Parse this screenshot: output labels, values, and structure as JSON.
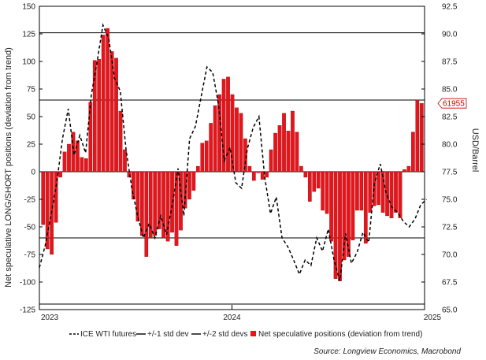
{
  "chart_data": {
    "type": "bar",
    "title": "",
    "ylabel_left": "Net speculative LONG/SHORT positions (deviation from trend)",
    "ylabel_right": "USD/Barrel",
    "source": "Source: Longview Economics, Macrobond",
    "x_ticks": [
      "2023",
      "2024",
      "2025"
    ],
    "x_range": [
      2023.0,
      2025.0
    ],
    "y_left": {
      "min": -125,
      "max": 150,
      "ticks": [
        "150",
        "125",
        "100",
        "75",
        "50",
        "25",
        "0",
        "-25",
        "-50",
        "-75",
        "-100",
        "-125"
      ]
    },
    "y_right": {
      "min": 65.0,
      "max": 92.5,
      "ticks": [
        "92.5",
        "90.0",
        "87.5",
        "85.0",
        "82.5",
        "80.0",
        "77.5",
        "75.0",
        "72.5",
        "70.0",
        "67.5",
        "65.0"
      ]
    },
    "reference_lines": {
      "std1": [
        65,
        -60
      ],
      "std2": [
        126,
        -120
      ],
      "zero": 0
    },
    "callout": {
      "label": "61955",
      "value": 62
    },
    "legend": [
      {
        "name": "ICE WTI futures",
        "style": "dashed",
        "color": "#000000"
      },
      {
        "name": "+/-1 std dev",
        "style": "solid",
        "color": "#000000"
      },
      {
        "name": "+/-2 std devs",
        "style": "solid",
        "color": "#000000"
      },
      {
        "name": "Net speculative positions (deviation from trend)",
        "style": "bar",
        "color": "#e8141b"
      }
    ],
    "colors": {
      "bars": "#e8141b",
      "bar_edge": "#7a0000",
      "line": "#000000"
    },
    "series": [
      {
        "name": "Net speculative positions (deviation from trend)",
        "type": "bar",
        "axis": "left",
        "values": [
          -48,
          -70,
          -75,
          -46,
          -5,
          18,
          25,
          36,
          28,
          13,
          12,
          63,
          101,
          102,
          124,
          130,
          109,
          103,
          55,
          20,
          -5,
          -25,
          -45,
          -58,
          -77,
          -60,
          -58,
          -52,
          -60,
          -63,
          -55,
          -67,
          -53,
          -33,
          -25,
          -17,
          5,
          26,
          28,
          44,
          60,
          70,
          84,
          86,
          70,
          58,
          53,
          30,
          5,
          -8,
          -1,
          -7,
          -5,
          20,
          35,
          42,
          53,
          37,
          55,
          36,
          5,
          -5,
          -27,
          -18,
          -15,
          -35,
          -38,
          -63,
          -97,
          -99,
          -80,
          -77,
          -62,
          -35,
          -35,
          -65,
          -37,
          -31,
          -30,
          -37,
          -40,
          -42,
          -37,
          -42,
          2,
          5,
          36,
          65,
          62
        ]
      },
      {
        "name": "ICE WTI futures",
        "type": "line",
        "axis": "right",
        "x": [
          2023.0,
          2023.03,
          2023.06,
          2023.09,
          2023.12,
          2023.15,
          2023.18,
          2023.21,
          2023.24,
          2023.27,
          2023.3,
          2023.33,
          2023.36,
          2023.39,
          2023.42,
          2023.45,
          2023.48,
          2023.51,
          2023.54,
          2023.57,
          2023.6,
          2023.63,
          2023.66,
          2023.69,
          2023.72,
          2023.75,
          2023.78,
          2023.81,
          2023.84,
          2023.87,
          2023.9,
          2023.93,
          2023.96,
          2023.99,
          2024.02,
          2024.05,
          2024.08,
          2024.11,
          2024.14,
          2024.17,
          2024.2,
          2024.23,
          2024.26,
          2024.29,
          2024.32,
          2024.35,
          2024.38,
          2024.41,
          2024.44,
          2024.47,
          2024.5,
          2024.53,
          2024.56,
          2024.59,
          2024.62,
          2024.65,
          2024.68,
          2024.71,
          2024.74,
          2024.77,
          2024.8,
          2024.83,
          2024.86,
          2024.89,
          2024.92,
          2024.95,
          2024.98,
          2025.01
        ],
        "values": [
          68.8,
          70.8,
          73.5,
          76.5,
          80.5,
          83.2,
          79.0,
          80.8,
          79.2,
          84.5,
          87.5,
          90.8,
          89.6,
          86.0,
          84.8,
          79.5,
          76.0,
          73.5,
          71.5,
          72.8,
          71.5,
          73.5,
          71.8,
          74.5,
          77.8,
          73.5,
          80.5,
          81.6,
          84.3,
          87.0,
          86.5,
          83.6,
          78.5,
          79.7,
          76.5,
          76.0,
          79.6,
          81.5,
          82.5,
          77.0,
          73.7,
          75.2,
          71.5,
          70.7,
          69.5,
          68.2,
          69.5,
          69.0,
          71.5,
          70.3,
          72.3,
          69.5,
          67.6,
          71.9,
          69.2,
          70.2,
          72.0,
          71.1,
          76.5,
          78.2,
          75.6,
          74.3,
          73.8,
          73.0,
          72.5,
          73.2,
          74.5,
          75.0
        ]
      }
    ]
  }
}
